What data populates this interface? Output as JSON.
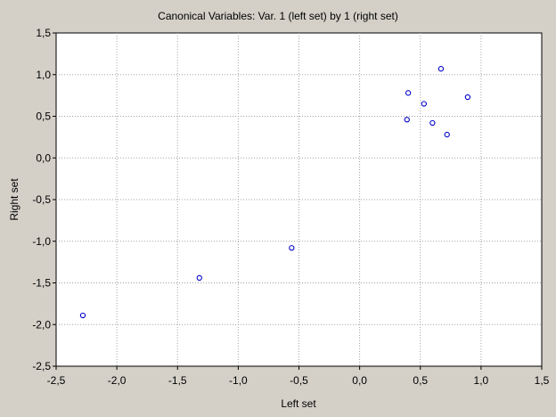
{
  "chart_data": {
    "type": "scatter",
    "title": "Canonical Variables: Var.   1 (left set) by   1 (right set)",
    "xlabel": "Left set",
    "ylabel": "Right set",
    "xlim": [
      -2.5,
      1.5
    ],
    "ylim": [
      -2.5,
      1.5
    ],
    "xticks": [
      -2.5,
      -2.0,
      -1.5,
      -1.0,
      -0.5,
      0.0,
      0.5,
      1.0,
      1.5
    ],
    "yticks": [
      -2.5,
      -2.0,
      -1.5,
      -1.0,
      -0.5,
      0.0,
      0.5,
      1.0,
      1.5
    ],
    "xtick_labels": [
      "-2,5",
      "-2,0",
      "-1,5",
      "-1,0",
      "-0,5",
      "0,0",
      "0,5",
      "1,0",
      "1,5"
    ],
    "ytick_labels": [
      "-2,5",
      "-2,0",
      "-1,5",
      "-1,0",
      "-0,5",
      "0,0",
      "0,5",
      "1,0",
      "1,5"
    ],
    "grid": true,
    "marker": "open-circle",
    "marker_color": "#0000c8",
    "series": [
      {
        "points": [
          {
            "x": -2.28,
            "y": -1.89
          },
          {
            "x": -1.32,
            "y": -1.44
          },
          {
            "x": -0.56,
            "y": -1.08
          },
          {
            "x": 0.39,
            "y": 0.46
          },
          {
            "x": 0.4,
            "y": 0.78
          },
          {
            "x": 0.53,
            "y": 0.65
          },
          {
            "x": 0.6,
            "y": 0.42
          },
          {
            "x": 0.67,
            "y": 1.07
          },
          {
            "x": 0.72,
            "y": 0.28
          },
          {
            "x": 0.89,
            "y": 0.73
          }
        ]
      }
    ]
  },
  "colors": {
    "window_background": "#d4d0c8",
    "plot_background": "#ffffff",
    "grid": "#a0a0a0",
    "marker": "#0000c8"
  }
}
